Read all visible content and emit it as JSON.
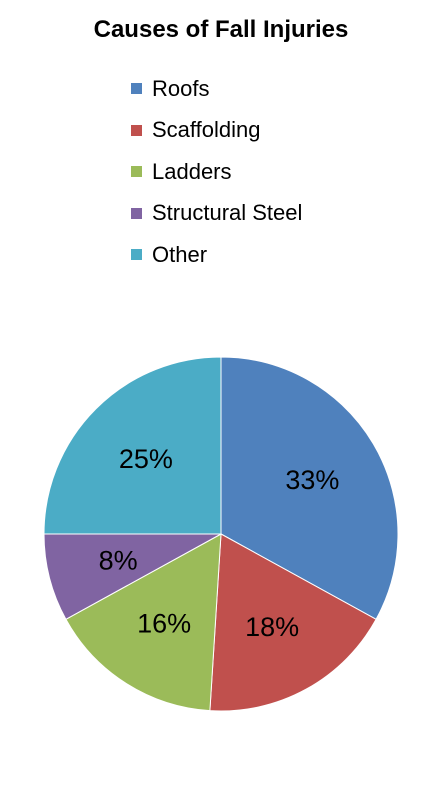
{
  "chart_data": {
    "type": "pie",
    "title": "Causes of Fall Injuries",
    "legend_position": "top",
    "slices": [
      {
        "name": "Roofs",
        "value": 33,
        "label": "33%",
        "color": "#4f81bd"
      },
      {
        "name": "Scaffolding",
        "value": 18,
        "label": "18%",
        "color": "#c0504d"
      },
      {
        "name": "Ladders",
        "value": 16,
        "label": "16%",
        "color": "#9bbb59"
      },
      {
        "name": "Structural Steel",
        "value": 8,
        "label": "8%",
        "color": "#8064a2"
      },
      {
        "name": "Other",
        "value": 25,
        "label": "25%",
        "color": "#4bacc6"
      }
    ]
  }
}
